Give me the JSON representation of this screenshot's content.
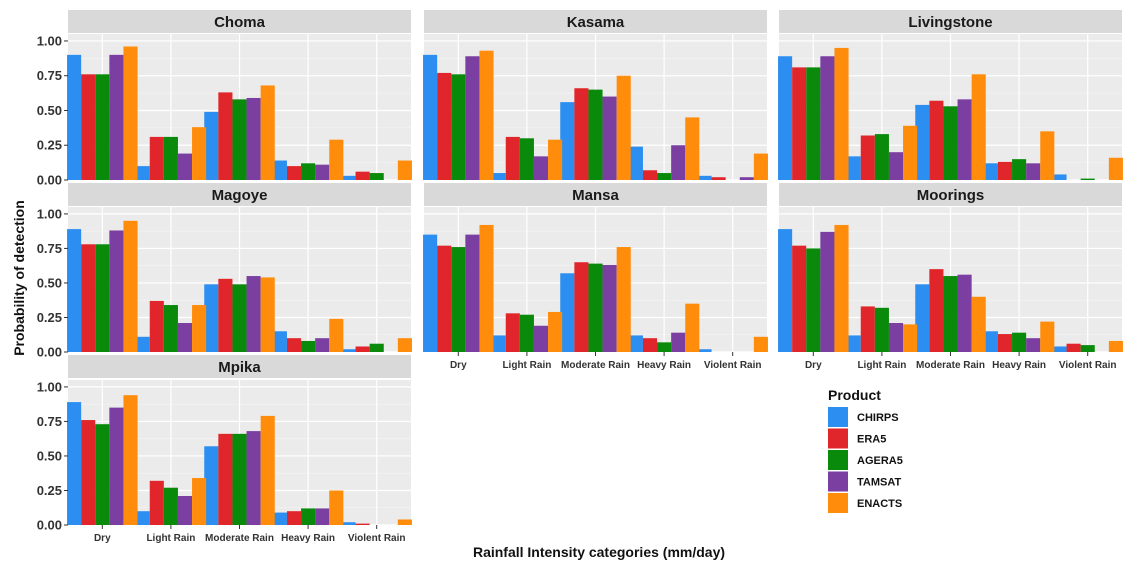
{
  "chart_data": {
    "type": "bar",
    "xlabel": "Rainfall Intensity categories (mm/day)",
    "ylabel": "Probability of detection",
    "ylim": [
      0,
      1.05
    ],
    "yticks": [
      "0.00",
      "0.25",
      "0.50",
      "0.75",
      "1.00"
    ],
    "grid": true,
    "legend_title": "Product",
    "legend_position": "bottom-right",
    "categories": [
      "Dry",
      "Light Rain",
      "Moderate Rain",
      "Heavy Rain",
      "Violent Rain"
    ],
    "series_names": [
      "CHIRPS",
      "ERA5",
      "AGERA5",
      "TAMSAT",
      "ENACTS"
    ],
    "colors": [
      "#2b8ef0",
      "#e0262a",
      "#0a8a0a",
      "#7a3fa0",
      "#ff8c0a"
    ],
    "panels": [
      {
        "name": "Choma",
        "values": [
          [
            0.9,
            0.1,
            0.49,
            0.14,
            0.03
          ],
          [
            0.76,
            0.31,
            0.63,
            0.1,
            0.06
          ],
          [
            0.76,
            0.31,
            0.58,
            0.12,
            0.05
          ],
          [
            0.9,
            0.19,
            0.59,
            0.11,
            0.0
          ],
          [
            0.96,
            0.38,
            0.68,
            0.29,
            0.14
          ]
        ]
      },
      {
        "name": "Kasama",
        "values": [
          [
            0.9,
            0.05,
            0.56,
            0.24,
            0.03
          ],
          [
            0.77,
            0.31,
            0.66,
            0.07,
            0.02
          ],
          [
            0.76,
            0.3,
            0.65,
            0.05,
            0.0
          ],
          [
            0.89,
            0.17,
            0.6,
            0.25,
            0.02
          ],
          [
            0.93,
            0.29,
            0.75,
            0.45,
            0.19
          ]
        ]
      },
      {
        "name": "Livingstone",
        "values": [
          [
            0.89,
            0.17,
            0.54,
            0.12,
            0.04
          ],
          [
            0.81,
            0.32,
            0.57,
            0.13,
            0.0
          ],
          [
            0.81,
            0.33,
            0.53,
            0.15,
            0.01
          ],
          [
            0.89,
            0.2,
            0.58,
            0.12,
            0.0
          ],
          [
            0.95,
            0.39,
            0.76,
            0.35,
            0.16
          ]
        ]
      },
      {
        "name": "Magoye",
        "values": [
          [
            0.89,
            0.11,
            0.49,
            0.15,
            0.02
          ],
          [
            0.78,
            0.37,
            0.53,
            0.1,
            0.04
          ],
          [
            0.78,
            0.34,
            0.49,
            0.08,
            0.06
          ],
          [
            0.88,
            0.21,
            0.55,
            0.1,
            0.0
          ],
          [
            0.95,
            0.34,
            0.54,
            0.24,
            0.1
          ]
        ]
      },
      {
        "name": "Mansa",
        "values": [
          [
            0.85,
            0.12,
            0.57,
            0.12,
            0.02
          ],
          [
            0.77,
            0.28,
            0.65,
            0.1,
            0.0
          ],
          [
            0.76,
            0.27,
            0.64,
            0.07,
            0.0
          ],
          [
            0.85,
            0.19,
            0.63,
            0.14,
            0.0
          ],
          [
            0.92,
            0.29,
            0.76,
            0.35,
            0.11
          ]
        ]
      },
      {
        "name": "Moorings",
        "values": [
          [
            0.89,
            0.12,
            0.49,
            0.15,
            0.04
          ],
          [
            0.77,
            0.33,
            0.6,
            0.13,
            0.06
          ],
          [
            0.75,
            0.32,
            0.55,
            0.14,
            0.05
          ],
          [
            0.87,
            0.21,
            0.56,
            0.1,
            0.0
          ],
          [
            0.92,
            0.2,
            0.4,
            0.22,
            0.08
          ]
        ]
      },
      {
        "name": "Mpika",
        "values": [
          [
            0.89,
            0.1,
            0.57,
            0.09,
            0.02
          ],
          [
            0.76,
            0.32,
            0.66,
            0.1,
            0.01
          ],
          [
            0.73,
            0.27,
            0.66,
            0.12,
            0.0
          ],
          [
            0.85,
            0.21,
            0.68,
            0.12,
            0.0
          ],
          [
            0.94,
            0.34,
            0.79,
            0.25,
            0.04
          ]
        ]
      }
    ]
  }
}
